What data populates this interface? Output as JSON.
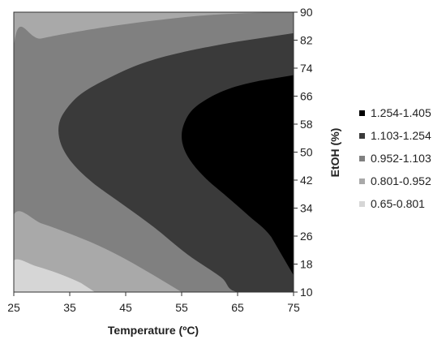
{
  "chart_data": {
    "type": "contour",
    "x": {
      "label": "Temperature (ºC)",
      "range": [
        25,
        75
      ],
      "ticks": [
        "25",
        "35",
        "45",
        "55",
        "65",
        "75"
      ]
    },
    "y": {
      "label": "EtOH (%)",
      "range": [
        10,
        90
      ],
      "ticks": [
        "10",
        "18",
        "26",
        "34",
        "42",
        "50",
        "58",
        "66",
        "74",
        "82",
        "90"
      ],
      "position": "right"
    },
    "legend": {
      "placement": "right",
      "entries": [
        {
          "label": "1.254-1.405",
          "color": "#000000"
        },
        {
          "label": "1.103-1.254",
          "color": "#3a3a3a"
        },
        {
          "label": "0.952-1.103",
          "color": "#808080"
        },
        {
          "label": "0.801-0.952",
          "color": "#a9a9a9"
        },
        {
          "label": "0.65-0.801",
          "color": "#d6d6d6"
        }
      ]
    },
    "levels": [
      {
        "range": "0.65-0.801",
        "boundary": [
          [
            25,
            10
          ],
          [
            25,
            19
          ],
          [
            29,
            17.4
          ],
          [
            33,
            15.3
          ],
          [
            37,
            12.6
          ],
          [
            39.5,
            10
          ]
        ]
      },
      {
        "range": "0.801-0.952",
        "boundary": [
          [
            25,
            10
          ],
          [
            25,
            32
          ],
          [
            30,
            29.6
          ],
          [
            35,
            26.7
          ],
          [
            40,
            23.4
          ],
          [
            45,
            19.4
          ],
          [
            50,
            14.8
          ],
          [
            55,
            10
          ]
        ]
      },
      {
        "range": "0.952-1.103",
        "boundary": [
          [
            25,
            10
          ],
          [
            25,
            80
          ],
          [
            30,
            82.5
          ],
          [
            40,
            85.4
          ],
          [
            50,
            87.6
          ],
          [
            60,
            89.2
          ],
          [
            72,
            90
          ],
          [
            75,
            90
          ],
          [
            75,
            10
          ]
        ]
      },
      {
        "range": "1.103-1.254",
        "boundary": [
          [
            75,
            84
          ],
          [
            65,
            81.6
          ],
          [
            55,
            78.5
          ],
          [
            48,
            75.4
          ],
          [
            42,
            71.2
          ],
          [
            37,
            66.6
          ],
          [
            34,
            61.4
          ],
          [
            33,
            57
          ],
          [
            33.5,
            52
          ],
          [
            35.5,
            46.8
          ],
          [
            39,
            41.4
          ],
          [
            44,
            35.6
          ],
          [
            50,
            28.6
          ],
          [
            56,
            20.8
          ],
          [
            62,
            14.3
          ],
          [
            65,
            10
          ],
          [
            75,
            10
          ]
        ]
      },
      {
        "range": "1.254-1.405",
        "boundary": [
          [
            75,
            72
          ],
          [
            69,
            70.4
          ],
          [
            64,
            68.4
          ],
          [
            60,
            65.6
          ],
          [
            57,
            62.2
          ],
          [
            55.5,
            58.4
          ],
          [
            55,
            54.6
          ],
          [
            55.5,
            50.7
          ],
          [
            57,
            46.6
          ],
          [
            59.5,
            42.2
          ],
          [
            63,
            37.4
          ],
          [
            67,
            31.8
          ],
          [
            71,
            25.8
          ],
          [
            75,
            14.8
          ]
        ]
      }
    ]
  }
}
